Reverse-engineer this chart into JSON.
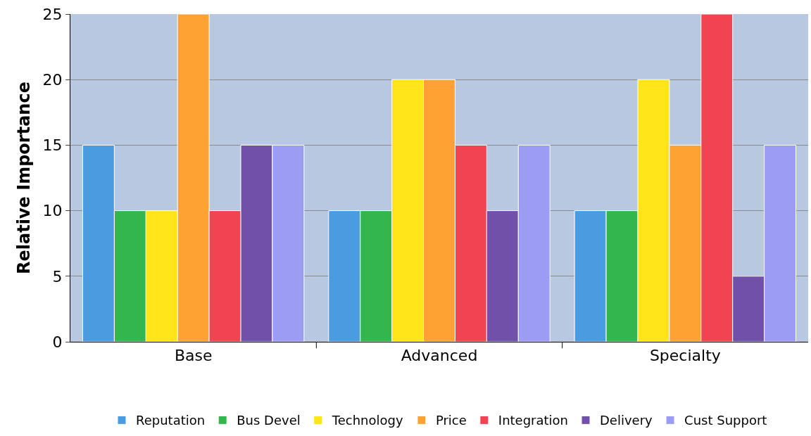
{
  "chart_data": {
    "type": "bar",
    "ylabel": "Relative Importance",
    "categories": [
      "Base",
      "Advanced",
      "Specialty"
    ],
    "series": [
      {
        "name": "Reputation",
        "color": "#4a9be0",
        "values": [
          15,
          10,
          10
        ]
      },
      {
        "name": "Bus Devel",
        "color": "#34b64e",
        "values": [
          10,
          10,
          10
        ]
      },
      {
        "name": "Technology",
        "color": "#ffe41a",
        "values": [
          10,
          20,
          20
        ]
      },
      {
        "name": "Price",
        "color": "#ffa133",
        "values": [
          25,
          20,
          15
        ]
      },
      {
        "name": "Integration",
        "color": "#f04550",
        "values": [
          10,
          15,
          25
        ]
      },
      {
        "name": "Delivery",
        "color": "#7050a8",
        "values": [
          15,
          10,
          5
        ]
      },
      {
        "name": "Cust Support",
        "color": "#9c9cf5",
        "values": [
          15,
          15,
          15
        ]
      }
    ],
    "ylim": [
      0,
      25
    ],
    "yticks": [
      0,
      5,
      10,
      15,
      20,
      25
    ],
    "grid": "y",
    "legend": "bottom"
  }
}
